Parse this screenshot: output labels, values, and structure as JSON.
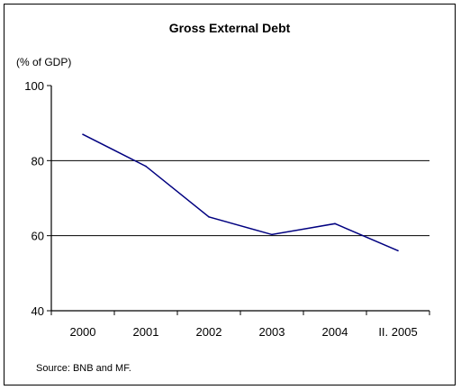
{
  "chart_data": {
    "type": "line",
    "title": "Gross External Debt",
    "ylabel": "(% of GDP)",
    "xlabel": "",
    "categories": [
      "2000",
      "2001",
      "2002",
      "2003",
      "2004",
      "II. 2005"
    ],
    "series": [
      {
        "values": [
          87,
          78.5,
          65,
          60.3,
          63.2,
          56
        ]
      }
    ],
    "ylim": [
      40,
      100
    ],
    "yticks": [
      40,
      60,
      80,
      100
    ],
    "grid": true,
    "legend": "none",
    "line_color": "#000080",
    "source": "Source: BNB and MF."
  }
}
